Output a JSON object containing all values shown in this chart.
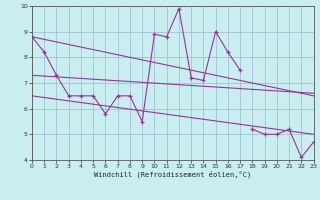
{
  "line1_x": [
    0,
    1,
    2,
    3,
    4,
    5,
    6,
    7,
    8,
    9,
    10,
    11,
    12,
    13,
    14,
    15,
    16,
    17
  ],
  "line1_y": [
    8.8,
    8.2,
    7.3,
    6.5,
    6.5,
    6.5,
    5.8,
    6.5,
    6.5,
    5.5,
    8.9,
    8.8,
    9.9,
    7.2,
    7.1,
    9.0,
    8.2,
    7.5
  ],
  "line2_x": [
    18,
    19,
    20,
    21,
    22,
    23
  ],
  "line2_y": [
    5.2,
    5.0,
    5.0,
    5.2,
    4.1,
    4.7
  ],
  "trend1_x": [
    0,
    23
  ],
  "trend1_y": [
    8.8,
    6.5
  ],
  "trend2_x": [
    0,
    23
  ],
  "trend2_y": [
    7.3,
    6.6
  ],
  "trend3_x": [
    0,
    23
  ],
  "trend3_y": [
    6.5,
    5.0
  ],
  "color": "#993399",
  "bg_color": "#c8eef0",
  "grid_color": "#99bbcc",
  "xlabel": "Windchill (Refroidissement éolien,°C)",
  "xlim": [
    0,
    23
  ],
  "ylim": [
    4,
    10
  ],
  "yticks": [
    4,
    5,
    6,
    7,
    8,
    9,
    10
  ],
  "xticks": [
    0,
    1,
    2,
    3,
    4,
    5,
    6,
    7,
    8,
    9,
    10,
    11,
    12,
    13,
    14,
    15,
    16,
    17,
    18,
    19,
    20,
    21,
    22,
    23
  ]
}
